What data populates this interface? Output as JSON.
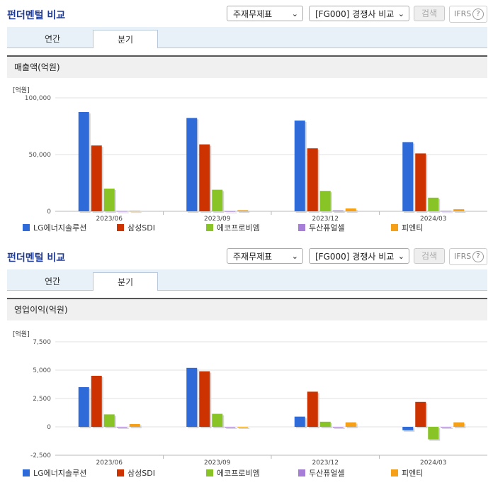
{
  "panels": [
    {
      "title": "펀더멘털 비교",
      "select1": "주재무제표",
      "select2": "[FG000] 경쟁사 비교",
      "search_label": "검색",
      "ifrs_label": "IFRS",
      "tabs": [
        "연간",
        "분기"
      ],
      "active_tab": "분기",
      "metric_title": "매출액(억원)",
      "unit": "[억원]"
    },
    {
      "title": "펀더멘털 비교",
      "select1": "주재무제표",
      "select2": "[FG000] 경쟁사 비교",
      "search_label": "검색",
      "ifrs_label": "IFRS",
      "tabs": [
        "연간",
        "분기"
      ],
      "active_tab": "분기",
      "metric_title": "영업이익(억원)",
      "unit": "[억원]"
    }
  ],
  "icons": {
    "select_arrow": "chevron-down-icon",
    "help": "question-circle-icon"
  },
  "chart_data": [
    {
      "type": "bar",
      "title": "매출액(억원)",
      "ylabel": "[억원]",
      "categories": [
        "2023/06",
        "2023/09",
        "2023/12",
        "2024/03"
      ],
      "ylim": [
        0,
        100000
      ],
      "yticks": [
        0,
        50000,
        100000
      ],
      "ytick_labels": [
        "0",
        "50,000",
        "100,000"
      ],
      "grid": true,
      "legend": "bottom",
      "series": [
        {
          "name": "LG에너지솔루션",
          "color": "#2e6bd9",
          "values": [
            87500,
            82300,
            80000,
            61000
          ]
        },
        {
          "name": "삼성SDI",
          "color": "#cc3300",
          "values": [
            58000,
            59000,
            55500,
            51000
          ]
        },
        {
          "name": "에코프로비엠",
          "color": "#88c425",
          "values": [
            20000,
            19000,
            18000,
            12000
          ]
        },
        {
          "name": "두산퓨얼셀",
          "color": "#a67ed8",
          "values": [
            300,
            200,
            800,
            400
          ]
        },
        {
          "name": "피엔티",
          "color": "#f5a016",
          "values": [
            500,
            1000,
            2500,
            1800
          ]
        }
      ]
    },
    {
      "type": "bar",
      "title": "영업이익(억원)",
      "ylabel": "[억원]",
      "categories": [
        "2023/06",
        "2023/09",
        "2023/12",
        "2024/03"
      ],
      "ylim": [
        -2500,
        7500
      ],
      "yticks": [
        -2500,
        0,
        2500,
        5000,
        7500
      ],
      "ytick_labels": [
        "-2,500",
        "0",
        "2,500",
        "5,000",
        "7,500"
      ],
      "grid": true,
      "legend": "bottom",
      "series": [
        {
          "name": "LG에너지솔루션",
          "color": "#2e6bd9",
          "values": [
            3500,
            5200,
            900,
            -300
          ]
        },
        {
          "name": "삼성SDI",
          "color": "#cc3300",
          "values": [
            4500,
            4900,
            3100,
            2200
          ]
        },
        {
          "name": "에코프로비엠",
          "color": "#88c425",
          "values": [
            1100,
            1150,
            450,
            -1100
          ]
        },
        {
          "name": "두산퓨얼셀",
          "color": "#a67ed8",
          "values": [
            0,
            0,
            0,
            0
          ]
        },
        {
          "name": "피엔티",
          "color": "#f5a016",
          "values": [
            250,
            -50,
            400,
            400
          ]
        }
      ]
    }
  ]
}
